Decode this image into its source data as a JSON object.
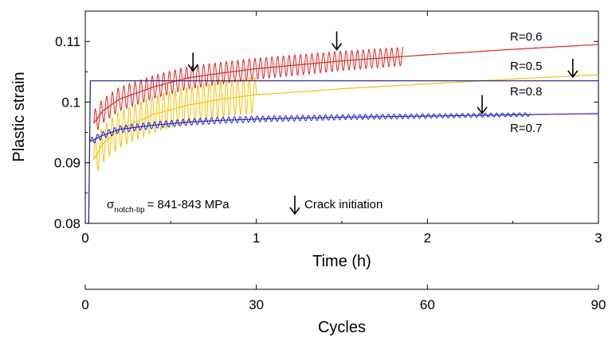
{
  "chart_data": {
    "type": "line",
    "ylabel": "Plastic strain",
    "xlabel": "Time (h)",
    "xlabel2": "Cycles",
    "xlim": [
      0,
      3
    ],
    "ylim": [
      0.08,
      0.115
    ],
    "x2lim": [
      0,
      90
    ],
    "xticks": [
      "0",
      "1",
      "2",
      "3"
    ],
    "x2ticks": [
      "0",
      "30",
      "60",
      "90"
    ],
    "yticks": [
      "0.08",
      "0.09",
      "0.1",
      "0.11"
    ],
    "yticks_values": [
      0.08,
      0.09,
      0.1,
      0.11
    ],
    "sigma_symbol": "σ",
    "sigma_subscript": "notch-tip",
    "sigma_value": "= 841-843 MPa",
    "crack_label": "Crack initiation",
    "series": [
      {
        "name": "R=0.6",
        "color": "#e02020",
        "trend": [
          [
            0.05,
            0.0965
          ],
          [
            0.1,
            0.0985
          ],
          [
            0.2,
            0.1005
          ],
          [
            0.4,
            0.1025
          ],
          [
            0.6,
            0.104
          ],
          [
            0.8,
            0.1048
          ],
          [
            1.0,
            0.1055
          ],
          [
            1.5,
            0.1068
          ],
          [
            2.0,
            0.1078
          ],
          [
            2.5,
            0.1087
          ],
          [
            3.0,
            0.1095
          ]
        ],
        "osc_end": 1.86,
        "osc_amp": [
          0.002,
          0.0015
        ],
        "crack": [
          1.47,
          0.1085
        ]
      },
      {
        "name": "R=0.5",
        "color": "#f5c000",
        "trend": [
          [
            0.05,
            0.0905
          ],
          [
            0.1,
            0.093
          ],
          [
            0.2,
            0.0955
          ],
          [
            0.4,
            0.098
          ],
          [
            0.6,
            0.0995
          ],
          [
            0.8,
            0.1005
          ],
          [
            1.0,
            0.1012
          ],
          [
            1.5,
            0.1022
          ],
          [
            2.0,
            0.103
          ],
          [
            2.5,
            0.1038
          ],
          [
            3.0,
            0.1045
          ]
        ],
        "osc_end": 1.0,
        "osc_amp": [
          0.003,
          0.003
        ],
        "crack": [
          0.63,
          0.105
        ]
      },
      {
        "name": "R=0.8",
        "color": "#1a1a8c",
        "trend": [
          [
            0.0,
            0.08
          ],
          [
            0.02,
            0.08
          ],
          [
            0.03,
            0.1035
          ],
          [
            3.0,
            0.1035
          ]
        ],
        "osc_end": 0,
        "osc_amp": [
          0,
          0
        ],
        "crack": [
          2.85,
          0.104
        ]
      },
      {
        "name": "R=0.7",
        "color": "#2020d0",
        "trend": [
          [
            0.03,
            0.0935
          ],
          [
            0.1,
            0.0945
          ],
          [
            0.2,
            0.0955
          ],
          [
            0.4,
            0.0962
          ],
          [
            0.6,
            0.0967
          ],
          [
            0.8,
            0.097
          ],
          [
            1.0,
            0.0972
          ],
          [
            1.5,
            0.0975
          ],
          [
            2.0,
            0.0977
          ],
          [
            2.5,
            0.0979
          ],
          [
            3.0,
            0.0981
          ]
        ],
        "osc_end": 2.6,
        "osc_amp": [
          0.0006,
          0.0003
        ],
        "crack": [
          2.32,
          0.098
        ]
      }
    ],
    "legend_labels": [
      "R=0.6",
      "R=0.5",
      "R=0.8",
      "R=0.7"
    ]
  }
}
